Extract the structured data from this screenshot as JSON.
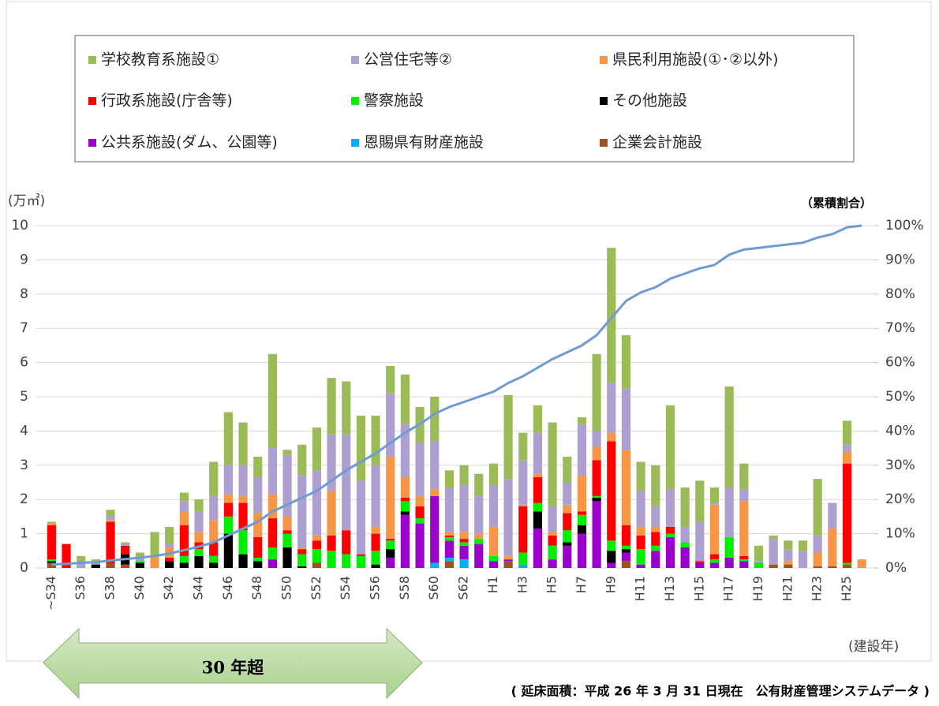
{
  "chart_data": {
    "type": "bar",
    "stacked": true,
    "y_label": "(万㎡)",
    "y2_label": "（累積割合）",
    "x_label": "(建設年)",
    "annotation": "30 年超",
    "footnote": "( 延床面積：平成 26 年 3 月 31 日現在　公有財産管理システムデータ )",
    "categories": [
      "~S34",
      null,
      "S36",
      null,
      "S38",
      null,
      "S40",
      null,
      "S42",
      null,
      "S44",
      null,
      "S46",
      null,
      "S48",
      null,
      "S50",
      null,
      "S52",
      null,
      "S54",
      null,
      "S56",
      null,
      "S58",
      null,
      "S60",
      null,
      "S62",
      null,
      "H1",
      null,
      "H3",
      null,
      "H5",
      null,
      "H7",
      null,
      "H9",
      null,
      "H11",
      null,
      "H13",
      null,
      "H15",
      null,
      "H17",
      null,
      "H19",
      null,
      "H21",
      null,
      "H23",
      null,
      "H25",
      null
    ],
    "ylim": [
      0,
      10
    ],
    "yticks": [
      0,
      1,
      2,
      3,
      4,
      5,
      6,
      7,
      8,
      9,
      10
    ],
    "y2lim": [
      0,
      100
    ],
    "y2ticks": [
      {
        "value": 0,
        "label": "0%"
      },
      {
        "value": 10,
        "label": "10%"
      },
      {
        "value": 20,
        "label": "20%"
      },
      {
        "value": 30,
        "label": "30%"
      },
      {
        "value": 40,
        "label": "40%"
      },
      {
        "value": 50,
        "label": "50%"
      },
      {
        "value": 60,
        "label": "60%"
      },
      {
        "value": 70,
        "label": "70%"
      },
      {
        "value": 80,
        "label": "80%"
      },
      {
        "value": 90,
        "label": "90%"
      },
      {
        "value": 100,
        "label": "100%"
      }
    ],
    "grid": true,
    "series": [
      {
        "name": "学校教育系施設①",
        "color": "#9bbb59",
        "values": [
          0.05,
          0,
          0.2,
          0.05,
          0.2,
          0.05,
          0.15,
          0.75,
          0.5,
          0.25,
          0.35,
          1.0,
          1.55,
          1.25,
          0.6,
          2.75,
          0.15,
          0.9,
          1.25,
          1.65,
          1.55,
          1.9,
          1.45,
          0.8,
          1.45,
          1.05,
          1.3,
          0.5,
          0.6,
          0.65,
          0.65,
          2.45,
          0.8,
          0.8,
          2.45,
          0.75,
          0.2,
          2.25,
          3.95,
          1.55,
          0.85,
          1.2,
          2.45,
          1.15,
          1.2,
          0.45,
          2.95,
          0.75,
          0.45,
          0.1,
          0.25,
          0.3,
          1.65,
          0,
          0.7,
          0
        ]
      },
      {
        "name": "公営住宅等②",
        "color": "#ad9fcf",
        "values": [
          0,
          0,
          0.15,
          0.1,
          0.1,
          0.05,
          0.1,
          0,
          0.1,
          0.3,
          0.6,
          0.7,
          0.85,
          0.9,
          1.05,
          1.35,
          1.8,
          2.1,
          1.9,
          1.65,
          2.8,
          2.15,
          1.8,
          1.85,
          1.55,
          1.55,
          1.4,
          1.3,
          1.35,
          1.1,
          1.2,
          2.25,
          1.3,
          1.2,
          0.75,
          0.65,
          1.5,
          0.45,
          1.45,
          1.8,
          1.05,
          0.6,
          1.1,
          0.45,
          1.15,
          0.05,
          1.45,
          0.35,
          0.05,
          0.75,
          0.35,
          0.5,
          0.5,
          0.75,
          0.2,
          0
        ]
      },
      {
        "name": "県民利用施設(①･②以外)",
        "color": "#f79646",
        "values": [
          0.05,
          0,
          0,
          0,
          0.05,
          0,
          0,
          0.3,
          0.3,
          0.4,
          0.3,
          0.65,
          0.25,
          0.2,
          0.7,
          0.7,
          0.4,
          0.05,
          0.15,
          1.3,
          0,
          0,
          0.2,
          2.4,
          0.6,
          0.3,
          0.2,
          0.1,
          0.2,
          0.15,
          0.85,
          0.1,
          0.05,
          0.1,
          0.1,
          0.25,
          1.05,
          0.4,
          0.25,
          2.2,
          0.25,
          0.15,
          0,
          0,
          0,
          1.45,
          0,
          1.6,
          0,
          0,
          0.1,
          0,
          0.4,
          1.1,
          0.35,
          0.25
        ]
      },
      {
        "name": "行政系施設(庁舎等)",
        "color": "#ff0000",
        "values": [
          1.0,
          0.7,
          0,
          0,
          1.2,
          0.25,
          0,
          0,
          0.1,
          0.9,
          0.2,
          0.4,
          0.4,
          0.8,
          0.6,
          0.85,
          0.1,
          0.15,
          0.25,
          0.45,
          0.7,
          0.05,
          0.5,
          0.05,
          0.1,
          0.35,
          0,
          0.05,
          0.1,
          0,
          0,
          0,
          1.35,
          0.75,
          0.3,
          0.5,
          0.1,
          1.05,
          2.9,
          0.6,
          0.4,
          0.4,
          0.2,
          0,
          0.05,
          0.15,
          0,
          0.1,
          0,
          0,
          0,
          0,
          0,
          0,
          2.9,
          0
        ]
      },
      {
        "name": "警察施設",
        "color": "#00ee00",
        "values": [
          0.05,
          0,
          0,
          0,
          0,
          0,
          0.05,
          0,
          0,
          0.2,
          0.2,
          0.2,
          0.5,
          0.7,
          0.1,
          0.35,
          0.4,
          0.35,
          0.4,
          0.5,
          0.4,
          0.35,
          0.4,
          0.25,
          0.3,
          0.15,
          0,
          0.1,
          0.1,
          0.15,
          0.15,
          0,
          0.35,
          0.25,
          0.4,
          0.35,
          0.3,
          0.05,
          0.3,
          0.1,
          0.45,
          0.15,
          0.1,
          0.15,
          0,
          0.1,
          0.6,
          0.05,
          0.15,
          0,
          0,
          0,
          0,
          0,
          0.05,
          0
        ]
      },
      {
        "name": "その他施設",
        "color": "#000000",
        "values": [
          0.05,
          0,
          0,
          0.1,
          0,
          0.3,
          0.15,
          0,
          0.2,
          0.15,
          0.35,
          0.15,
          1.0,
          0.4,
          0.2,
          0,
          0.6,
          0.05,
          0,
          0,
          0,
          0,
          0.1,
          0.25,
          0.1,
          0,
          0,
          0,
          0,
          0,
          0,
          0,
          0,
          0.5,
          0,
          0.1,
          0.25,
          0.1,
          0.35,
          0.1,
          0,
          0,
          0,
          0,
          0,
          0,
          0,
          0,
          0,
          0,
          0,
          0,
          0,
          0,
          0,
          0
        ]
      },
      {
        "name": "公共系施設(ダム、公園等)",
        "color": "#9900cc",
        "values": [
          0,
          0,
          0,
          0,
          0,
          0,
          0,
          0,
          0,
          0,
          0,
          0,
          0,
          0,
          0,
          0.25,
          0,
          0,
          0,
          0,
          0,
          0,
          0,
          0.3,
          1.55,
          1.3,
          1.95,
          0.5,
          0.4,
          0.7,
          0.2,
          0.05,
          0,
          1.15,
          0.25,
          0.65,
          1.0,
          1.95,
          0.15,
          0.25,
          0.1,
          0.5,
          0.9,
          0.6,
          0.15,
          0.15,
          0.3,
          0.2,
          0,
          0,
          0,
          0,
          0,
          0,
          0,
          0
        ]
      },
      {
        "name": "恩賜県有財産施設",
        "color": "#00b0f0",
        "values": [
          0,
          0,
          0,
          0,
          0,
          0,
          0,
          0,
          0,
          0,
          0,
          0,
          0,
          0,
          0,
          0,
          0,
          0,
          0,
          0,
          0,
          0,
          0,
          0,
          0,
          0,
          0.15,
          0.1,
          0.25,
          0,
          0,
          0,
          0.1,
          0,
          0,
          0,
          0,
          0,
          0,
          0,
          0,
          0,
          0,
          0,
          0,
          0,
          0,
          0,
          0,
          0,
          0,
          0,
          0,
          0,
          0,
          0
        ]
      },
      {
        "name": "企業会計施設",
        "color": "#a0521e",
        "values": [
          0.15,
          0,
          0,
          0,
          0.15,
          0.1,
          0,
          0,
          0,
          0,
          0,
          0,
          0,
          0,
          0,
          0,
          0,
          0,
          0.15,
          0,
          0,
          0,
          0,
          0,
          0,
          0,
          0,
          0.2,
          0,
          0,
          0,
          0.2,
          0,
          0,
          0,
          0,
          0,
          0,
          0,
          0.2,
          0,
          0,
          0,
          0,
          0,
          0,
          0,
          0,
          0,
          0.1,
          0.1,
          0,
          0.05,
          0.05,
          0.1,
          0
        ]
      }
    ],
    "line_series": {
      "axis": "y2",
      "color": "#6f9bd4",
      "values": [
        1,
        1.2,
        1.5,
        1.7,
        2.2,
        2.6,
        3.0,
        3.5,
        4.2,
        5.2,
        6.2,
        7.5,
        9.5,
        11.5,
        13.5,
        16.5,
        18.5,
        20.5,
        22.5,
        25.5,
        28.5,
        31,
        33.5,
        36.5,
        39.5,
        42,
        45,
        47,
        48.5,
        50,
        51.5,
        54,
        56,
        58.5,
        61,
        63,
        65,
        68,
        73,
        78,
        80.5,
        82,
        84.5,
        86,
        87.5,
        88.5,
        91.5,
        93,
        93.5,
        94,
        94.5,
        95,
        96.5,
        97.5,
        99.5,
        100
      ]
    }
  }
}
